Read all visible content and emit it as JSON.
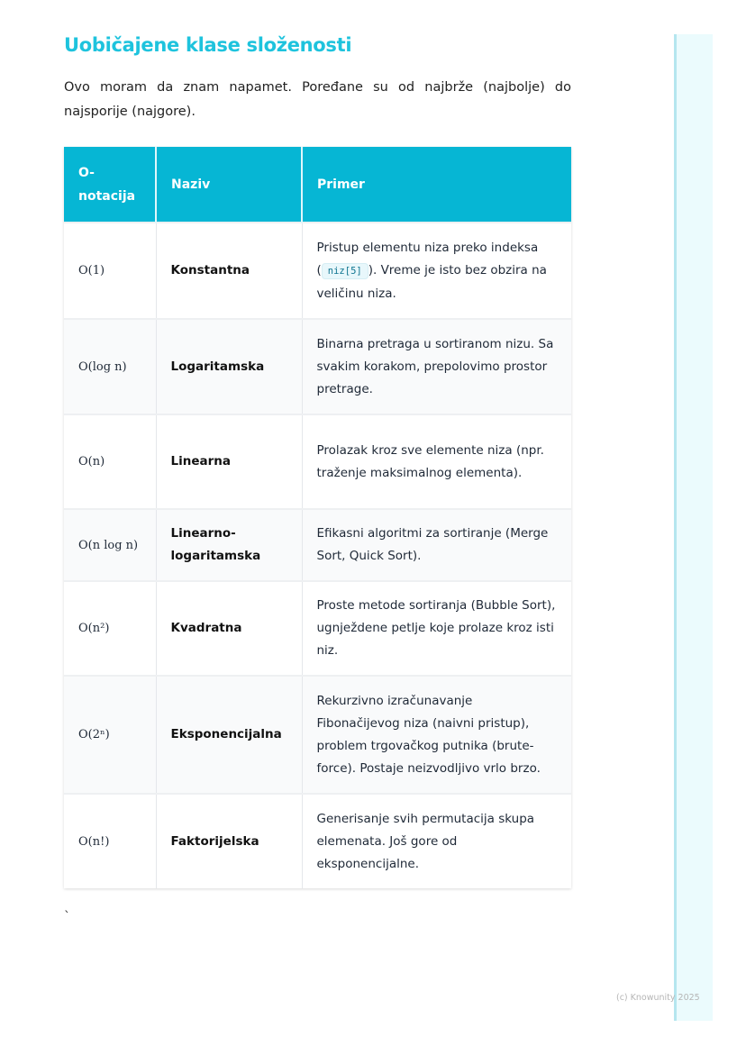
{
  "title": "Uobičajene klase složenosti",
  "intro": "Ovo moram da znam napamet. Poređane su od najbrže (najbolje) do najsporije (najgore).",
  "table": {
    "headers": [
      "O-notacija",
      "Naziv",
      "Primer"
    ],
    "rows": [
      {
        "o": "O(1)",
        "name": "Konstantna",
        "pre": "Pristup elementu niza preko indeksa (",
        "code": "niz[5]",
        "post": "). Vreme je isto bez obzira na veličinu niza."
      },
      {
        "o": "O(log n)",
        "name": "Logaritamska",
        "pre": "Binarna pretraga u sortiranom nizu. Sa svakim korakom, prepolovimo prostor pretrage."
      },
      {
        "o": "O(n)",
        "name": "Linearna",
        "pre": "Prolazak kroz sve elemente niza (npr. traženje maksimalnog elementa)."
      },
      {
        "o": "O(n log n)",
        "name": "Linearno-logaritamska",
        "pre": "Efikasni algoritmi za sortiranje (Merge Sort, Quick Sort)."
      },
      {
        "o": "O(n²)",
        "name": "Kvadratna",
        "pre": "Proste metode sortiranja (Bubble Sort), ugnježdene petlje koje prolaze kroz isti niz."
      },
      {
        "o": "O(2ⁿ)",
        "name": "Eksponencijalna",
        "pre": "Rekurzivno izračunavanje Fibonačijevog niza (naivni pristup), problem trgovačkog putnika (brute-force). Postaje neizvodljivo vrlo brzo."
      },
      {
        "o": "O(n!)",
        "name": "Faktorijelska",
        "pre": "Generisanje svih permutacija skupa elemenata. Još gore od eksponencijalne."
      }
    ]
  },
  "stray": "`",
  "footer": "(c) Knowunity 2025"
}
